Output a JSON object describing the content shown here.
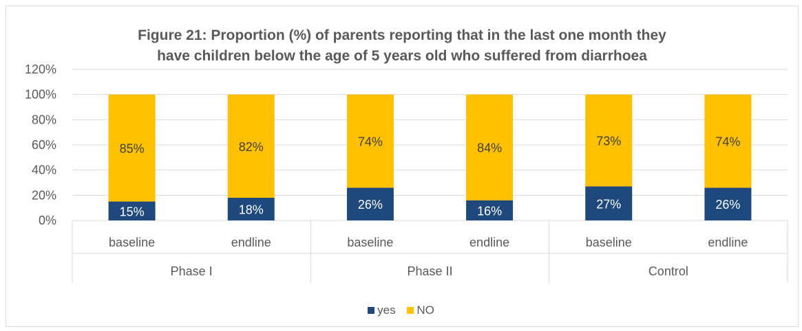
{
  "colors": {
    "yes": "#1f497d",
    "no": "#ffc000",
    "grid": "#d9d9d9",
    "axis_text": "#595959"
  },
  "chart_data": {
    "type": "bar",
    "stacked": true,
    "title_lines": [
      "Figure 21: Proportion (%) of parents reporting that in the last one month they",
      "have children below the age of 5 years old who suffered from diarrhoea"
    ],
    "categories": [
      "baseline",
      "endline",
      "baseline",
      "endline",
      "baseline",
      "endline"
    ],
    "groups": [
      {
        "label": "Phase I",
        "span": [
          0,
          1
        ]
      },
      {
        "label": "Phase II",
        "span": [
          2,
          3
        ]
      },
      {
        "label": "Control",
        "span": [
          4,
          5
        ]
      }
    ],
    "series": [
      {
        "name": "yes",
        "values": [
          15,
          18,
          26,
          16,
          27,
          26
        ],
        "labels": [
          "15%",
          "18%",
          "26%",
          "16%",
          "27%",
          "26%"
        ]
      },
      {
        "name": "NO",
        "values": [
          85,
          82,
          74,
          84,
          73,
          74
        ],
        "labels": [
          "85%",
          "82%",
          "74%",
          "84%",
          "73%",
          "74%"
        ]
      }
    ],
    "y_ticks": [
      "0%",
      "20%",
      "40%",
      "60%",
      "80%",
      "100%",
      "120%"
    ],
    "ylim": [
      0,
      120
    ],
    "grid": true,
    "legend_position": "bottom"
  }
}
